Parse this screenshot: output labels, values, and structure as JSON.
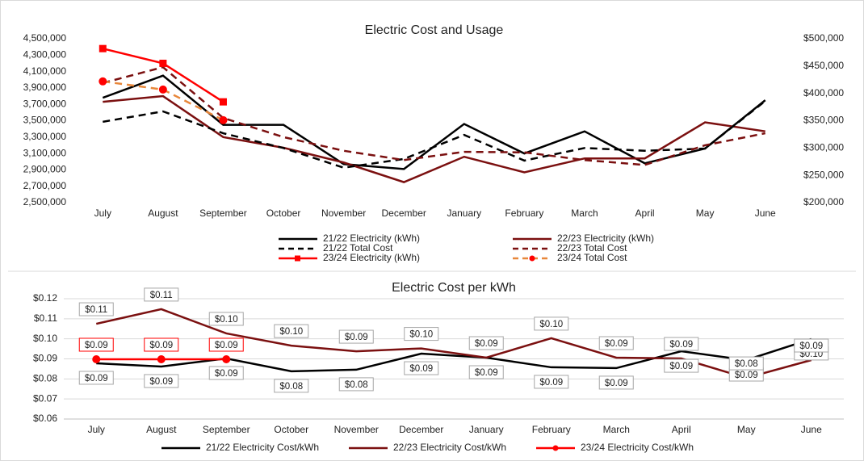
{
  "chart_data": [
    {
      "type": "line",
      "title": "Electric Cost and Usage",
      "categories": [
        "July",
        "August",
        "September",
        "October",
        "November",
        "December",
        "January",
        "February",
        "March",
        "April",
        "May",
        "June"
      ],
      "ylim": [
        2500000,
        4500000
      ],
      "yticks": [
        {
          "value": 2500000,
          "label": "2,500,000"
        },
        {
          "value": 2700000,
          "label": "2,700,000"
        },
        {
          "value": 2900000,
          "label": "2,900,000"
        },
        {
          "value": 3100000,
          "label": "3,100,000"
        },
        {
          "value": 3300000,
          "label": "3,300,000"
        },
        {
          "value": 3500000,
          "label": "3,500,000"
        },
        {
          "value": 3700000,
          "label": "3,700,000"
        },
        {
          "value": 3900000,
          "label": "3,900,000"
        },
        {
          "value": 4100000,
          "label": "4,100,000"
        },
        {
          "value": 4300000,
          "label": "4,300,000"
        },
        {
          "value": 4500000,
          "label": "4,500,000"
        }
      ],
      "y2lim": [
        200000,
        500000
      ],
      "y2ticks": [
        {
          "value": 200000,
          "label": "$200,000"
        },
        {
          "value": 250000,
          "label": "$250,000"
        },
        {
          "value": 300000,
          "label": "$300,000"
        },
        {
          "value": 350000,
          "label": "$350,000"
        },
        {
          "value": 400000,
          "label": "$400,000"
        },
        {
          "value": 450000,
          "label": "$450,000"
        },
        {
          "value": 500000,
          "label": "$500,000"
        }
      ],
      "grid": false,
      "legend": "bottom",
      "series": [
        {
          "name": "21/22 Electricity (kWh)",
          "color": "#000000",
          "line_style": "solid",
          "values": [
            3780000,
            4050000,
            3450000,
            3450000,
            2970000,
            2910000,
            3460000,
            3100000,
            3370000,
            2980000,
            3160000,
            3750000
          ]
        },
        {
          "name": "22/23 Electricity (kWh)",
          "color": "#7b1010",
          "line_style": "solid",
          "values": [
            3730000,
            3800000,
            3300000,
            3170000,
            2990000,
            2750000,
            3060000,
            2870000,
            3040000,
            3040000,
            3480000,
            3370000
          ]
        },
        {
          "name": "21/22 Total Cost",
          "color": "#000000",
          "line_style": "dashed",
          "axis": "y2",
          "values": [
            348000,
            367000,
            327000,
            300000,
            264000,
            280000,
            324000,
            277000,
            300000,
            295000,
            299000,
            386000
          ]
        },
        {
          "name": "22/23 Total Cost",
          "color": "#7b1010",
          "line_style": "dashed",
          "axis": "y2",
          "values": [
            419000,
            448000,
            355000,
            320000,
            295000,
            278000,
            293000,
            292000,
            278000,
            269000,
            305000,
            327000
          ]
        },
        {
          "name": "23/24 Electricity (kWh)",
          "color": "#ff0000",
          "line_style": "solid",
          "marker": "square",
          "values": [
            4380000,
            4200000,
            3730000,
            null,
            null,
            null,
            null,
            null,
            null,
            null,
            null,
            null
          ]
        },
        {
          "name": "23/24 Total Cost",
          "color": "#e8873a",
          "marker_color": "#ff0000",
          "line_style": "dashed",
          "marker": "circle",
          "axis": "y2",
          "values": [
            422000,
            407000,
            351000,
            null,
            null,
            null,
            null,
            null,
            null,
            null,
            null,
            null
          ]
        }
      ]
    },
    {
      "type": "line",
      "title": "Electric Cost per kWh",
      "categories": [
        "July",
        "August",
        "September",
        "October",
        "November",
        "December",
        "January",
        "February",
        "March",
        "April",
        "May",
        "June"
      ],
      "ylim": [
        0.06,
        0.12
      ],
      "yticks": [
        {
          "value": 0.06,
          "label": "$0.06"
        },
        {
          "value": 0.07,
          "label": "$0.07"
        },
        {
          "value": 0.08,
          "label": "$0.08"
        },
        {
          "value": 0.09,
          "label": "$0.09"
        },
        {
          "value": 0.1,
          "label": "$0.10"
        },
        {
          "value": 0.11,
          "label": "$0.11"
        },
        {
          "value": 0.12,
          "label": "$0.12"
        }
      ],
      "grid": true,
      "legend": "bottom",
      "series": [
        {
          "name": "21/22 Electricity Cost/kWh",
          "color": "#000000",
          "line_style": "solid",
          "values": [
            0.0878,
            0.0862,
            0.0902,
            0.0838,
            0.0846,
            0.0926,
            0.0906,
            0.0858,
            0.0854,
            0.0938,
            0.0894,
            0.0999
          ],
          "value_labels": [
            "$0.09",
            "$0.09",
            "$0.09",
            "$0.08",
            "$0.08",
            "$0.09",
            "$0.09",
            "$0.09",
            "$0.09",
            "$0.09",
            "$0.09",
            "$0.10"
          ]
        },
        {
          "name": "22/23 Electricity Cost/kWh",
          "color": "#7b1010",
          "line_style": "solid",
          "values": [
            0.1075,
            0.1148,
            0.1027,
            0.0966,
            0.0938,
            0.0952,
            0.0906,
            0.1003,
            0.0906,
            0.0902,
            0.0805,
            0.0894
          ],
          "value_labels": [
            "$0.11",
            "$0.11",
            "$0.10",
            "$0.10",
            "$0.09",
            "$0.10",
            "$0.09",
            "$0.10",
            "$0.09",
            "$0.09",
            "$0.08",
            "$0.09"
          ]
        },
        {
          "name": "23/24 Electricity Cost/kWh",
          "color": "#ff0000",
          "line_style": "solid",
          "marker": "circle",
          "values": [
            0.0898,
            0.0898,
            0.0898,
            null,
            null,
            null,
            null,
            null,
            null,
            null,
            null,
            null
          ],
          "value_labels": [
            "$0.09",
            "$0.09",
            "$0.09",
            null,
            null,
            null,
            null,
            null,
            null,
            null,
            null,
            null
          ]
        }
      ]
    }
  ]
}
